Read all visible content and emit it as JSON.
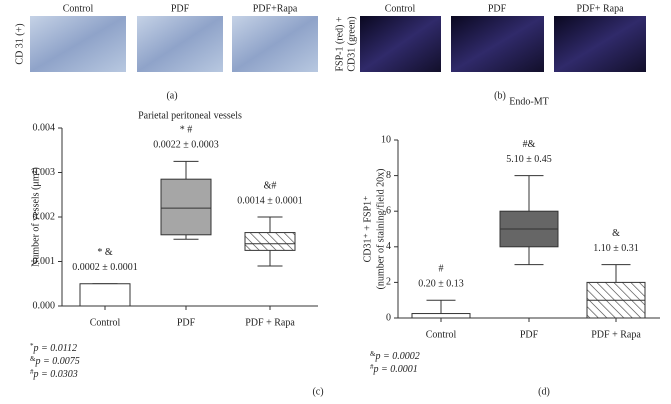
{
  "panels": [
    {
      "caption": "(a)",
      "ylabel": "CD 31 (+)",
      "labels": [
        "Control",
        "PDF",
        "PDF+Rapa"
      ]
    },
    {
      "caption": "(b)",
      "ylabel": [
        "FSP-1 (red) +",
        "CD31 (green)"
      ],
      "labels": [
        "Control",
        "PDF",
        "PDF+ Rapa"
      ]
    }
  ],
  "chart_data": [
    {
      "type": "box",
      "title": "Parietal peritoneal vessels",
      "ylabel": [
        "Number of vessels (μm²)"
      ],
      "caption": "(c)",
      "categories": [
        "Control",
        "PDF",
        "PDF + Rapa"
      ],
      "boxes": [
        {
          "min": 0,
          "q1": 0,
          "median": 0,
          "q3": 0.0005,
          "max": 0.0005,
          "color": "#ffffff",
          "hatched": false
        },
        {
          "min": 0.0015,
          "q1": 0.0016,
          "median": 0.0022,
          "q3": 0.00285,
          "max": 0.00325,
          "color": "#a6a6a6",
          "hatched": false
        },
        {
          "min": 0.0009,
          "q1": 0.00125,
          "median": 0.0014,
          "q3": 0.00165,
          "max": 0.002,
          "color": "#ffffff",
          "hatched": true
        }
      ],
      "annotations": [
        {
          "symbol": "* &",
          "text": "0.0002 ± 0.0001"
        },
        {
          "symbol": "* #",
          "text": "0.0022 ± 0.0003"
        },
        {
          "symbol": "&#",
          "text": "0.0014 ± 0.0001"
        }
      ],
      "footnotes": [
        {
          "symbol": "*",
          "text": "p = 0.0112"
        },
        {
          "symbol": "&",
          "text": "p = 0.0075"
        },
        {
          "symbol": "#",
          "text": "p = 0.0303"
        }
      ],
      "ylim": [
        0,
        0.004
      ],
      "yticks": [
        {
          "value": 0,
          "label": "0.000"
        },
        {
          "value": 0.001,
          "label": "0.001"
        },
        {
          "value": 0.002,
          "label": "0.002"
        },
        {
          "value": 0.003,
          "label": "0.003"
        },
        {
          "value": 0.004,
          "label": "0.004"
        }
      ]
    },
    {
      "type": "box",
      "title": "Endo-MT",
      "ylabel": [
        "CD31⁺ + FSP1⁺",
        "(number of staining/field 20x)"
      ],
      "caption": "(d)",
      "categories": [
        "Control",
        "PDF",
        "PDF + Rapa"
      ],
      "boxes": [
        {
          "min": 0,
          "q1": 0,
          "median": 0,
          "q3": 0.25,
          "max": 1,
          "color": "#ffffff",
          "hatched": false
        },
        {
          "min": 3,
          "q1": 4,
          "median": 5,
          "q3": 6,
          "max": 8,
          "color": "#666666",
          "hatched": false
        },
        {
          "min": 0,
          "q1": 0,
          "median": 1,
          "q3": 2,
          "max": 3,
          "color": "#ffffff",
          "hatched": true
        }
      ],
      "annotations": [
        {
          "symbol": "#",
          "text": "0.20 ± 0.13"
        },
        {
          "symbol": "#&",
          "text": "5.10 ± 0.45"
        },
        {
          "symbol": "&",
          "text": "1.10 ± 0.31"
        }
      ],
      "footnotes": [
        {
          "symbol": "&",
          "text": "p = 0.0002"
        },
        {
          "symbol": "#",
          "text": "p = 0.0001"
        }
      ],
      "ylim": [
        0,
        10
      ],
      "yticks": [
        0,
        2,
        4,
        6,
        8,
        10
      ]
    }
  ]
}
